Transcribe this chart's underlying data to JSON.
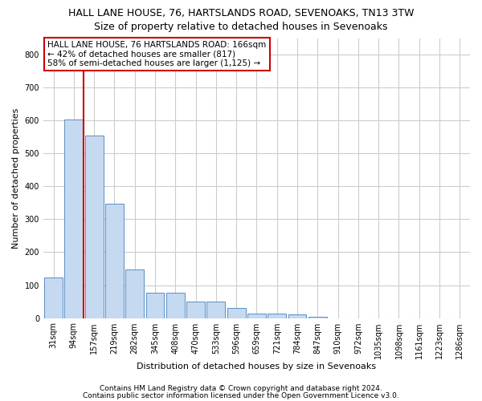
{
  "title": "HALL LANE HOUSE, 76, HARTSLANDS ROAD, SEVENOAKS, TN13 3TW",
  "subtitle": "Size of property relative to detached houses in Sevenoaks",
  "xlabel": "Distribution of detached houses by size in Sevenoaks",
  "ylabel": "Number of detached properties",
  "categories": [
    "31sqm",
    "94sqm",
    "157sqm",
    "219sqm",
    "282sqm",
    "345sqm",
    "408sqm",
    "470sqm",
    "533sqm",
    "596sqm",
    "659sqm",
    "721sqm",
    "784sqm",
    "847sqm",
    "910sqm",
    "972sqm",
    "1035sqm",
    "1098sqm",
    "1161sqm",
    "1223sqm",
    "1286sqm"
  ],
  "values": [
    122,
    603,
    555,
    347,
    147,
    78,
    78,
    50,
    50,
    30,
    14,
    14,
    12,
    5,
    0,
    0,
    0,
    0,
    0,
    0,
    0
  ],
  "bar_color": "#c5d9f0",
  "bar_edge_color": "#5a8fc3",
  "vline_x_index": 2,
  "vline_color": "#cc0000",
  "annotation_line1": "HALL LANE HOUSE, 76 HARTSLANDS ROAD: 166sqm",
  "annotation_line2": "← 42% of detached houses are smaller (817)",
  "annotation_line3": "58% of semi-detached houses are larger (1,125) →",
  "annotation_box_color": "#ffffff",
  "annotation_box_edge": "#cc0000",
  "ylim": [
    0,
    850
  ],
  "yticks": [
    0,
    100,
    200,
    300,
    400,
    500,
    600,
    700,
    800
  ],
  "footer1": "Contains HM Land Registry data © Crown copyright and database right 2024.",
  "footer2": "Contains public sector information licensed under the Open Government Licence v3.0.",
  "bg_color": "#ffffff",
  "grid_color": "#cccccc",
  "title_fontsize": 9,
  "subtitle_fontsize": 9,
  "axis_label_fontsize": 8,
  "tick_fontsize": 7,
  "annotation_fontsize": 7.5,
  "footer_fontsize": 6.5
}
